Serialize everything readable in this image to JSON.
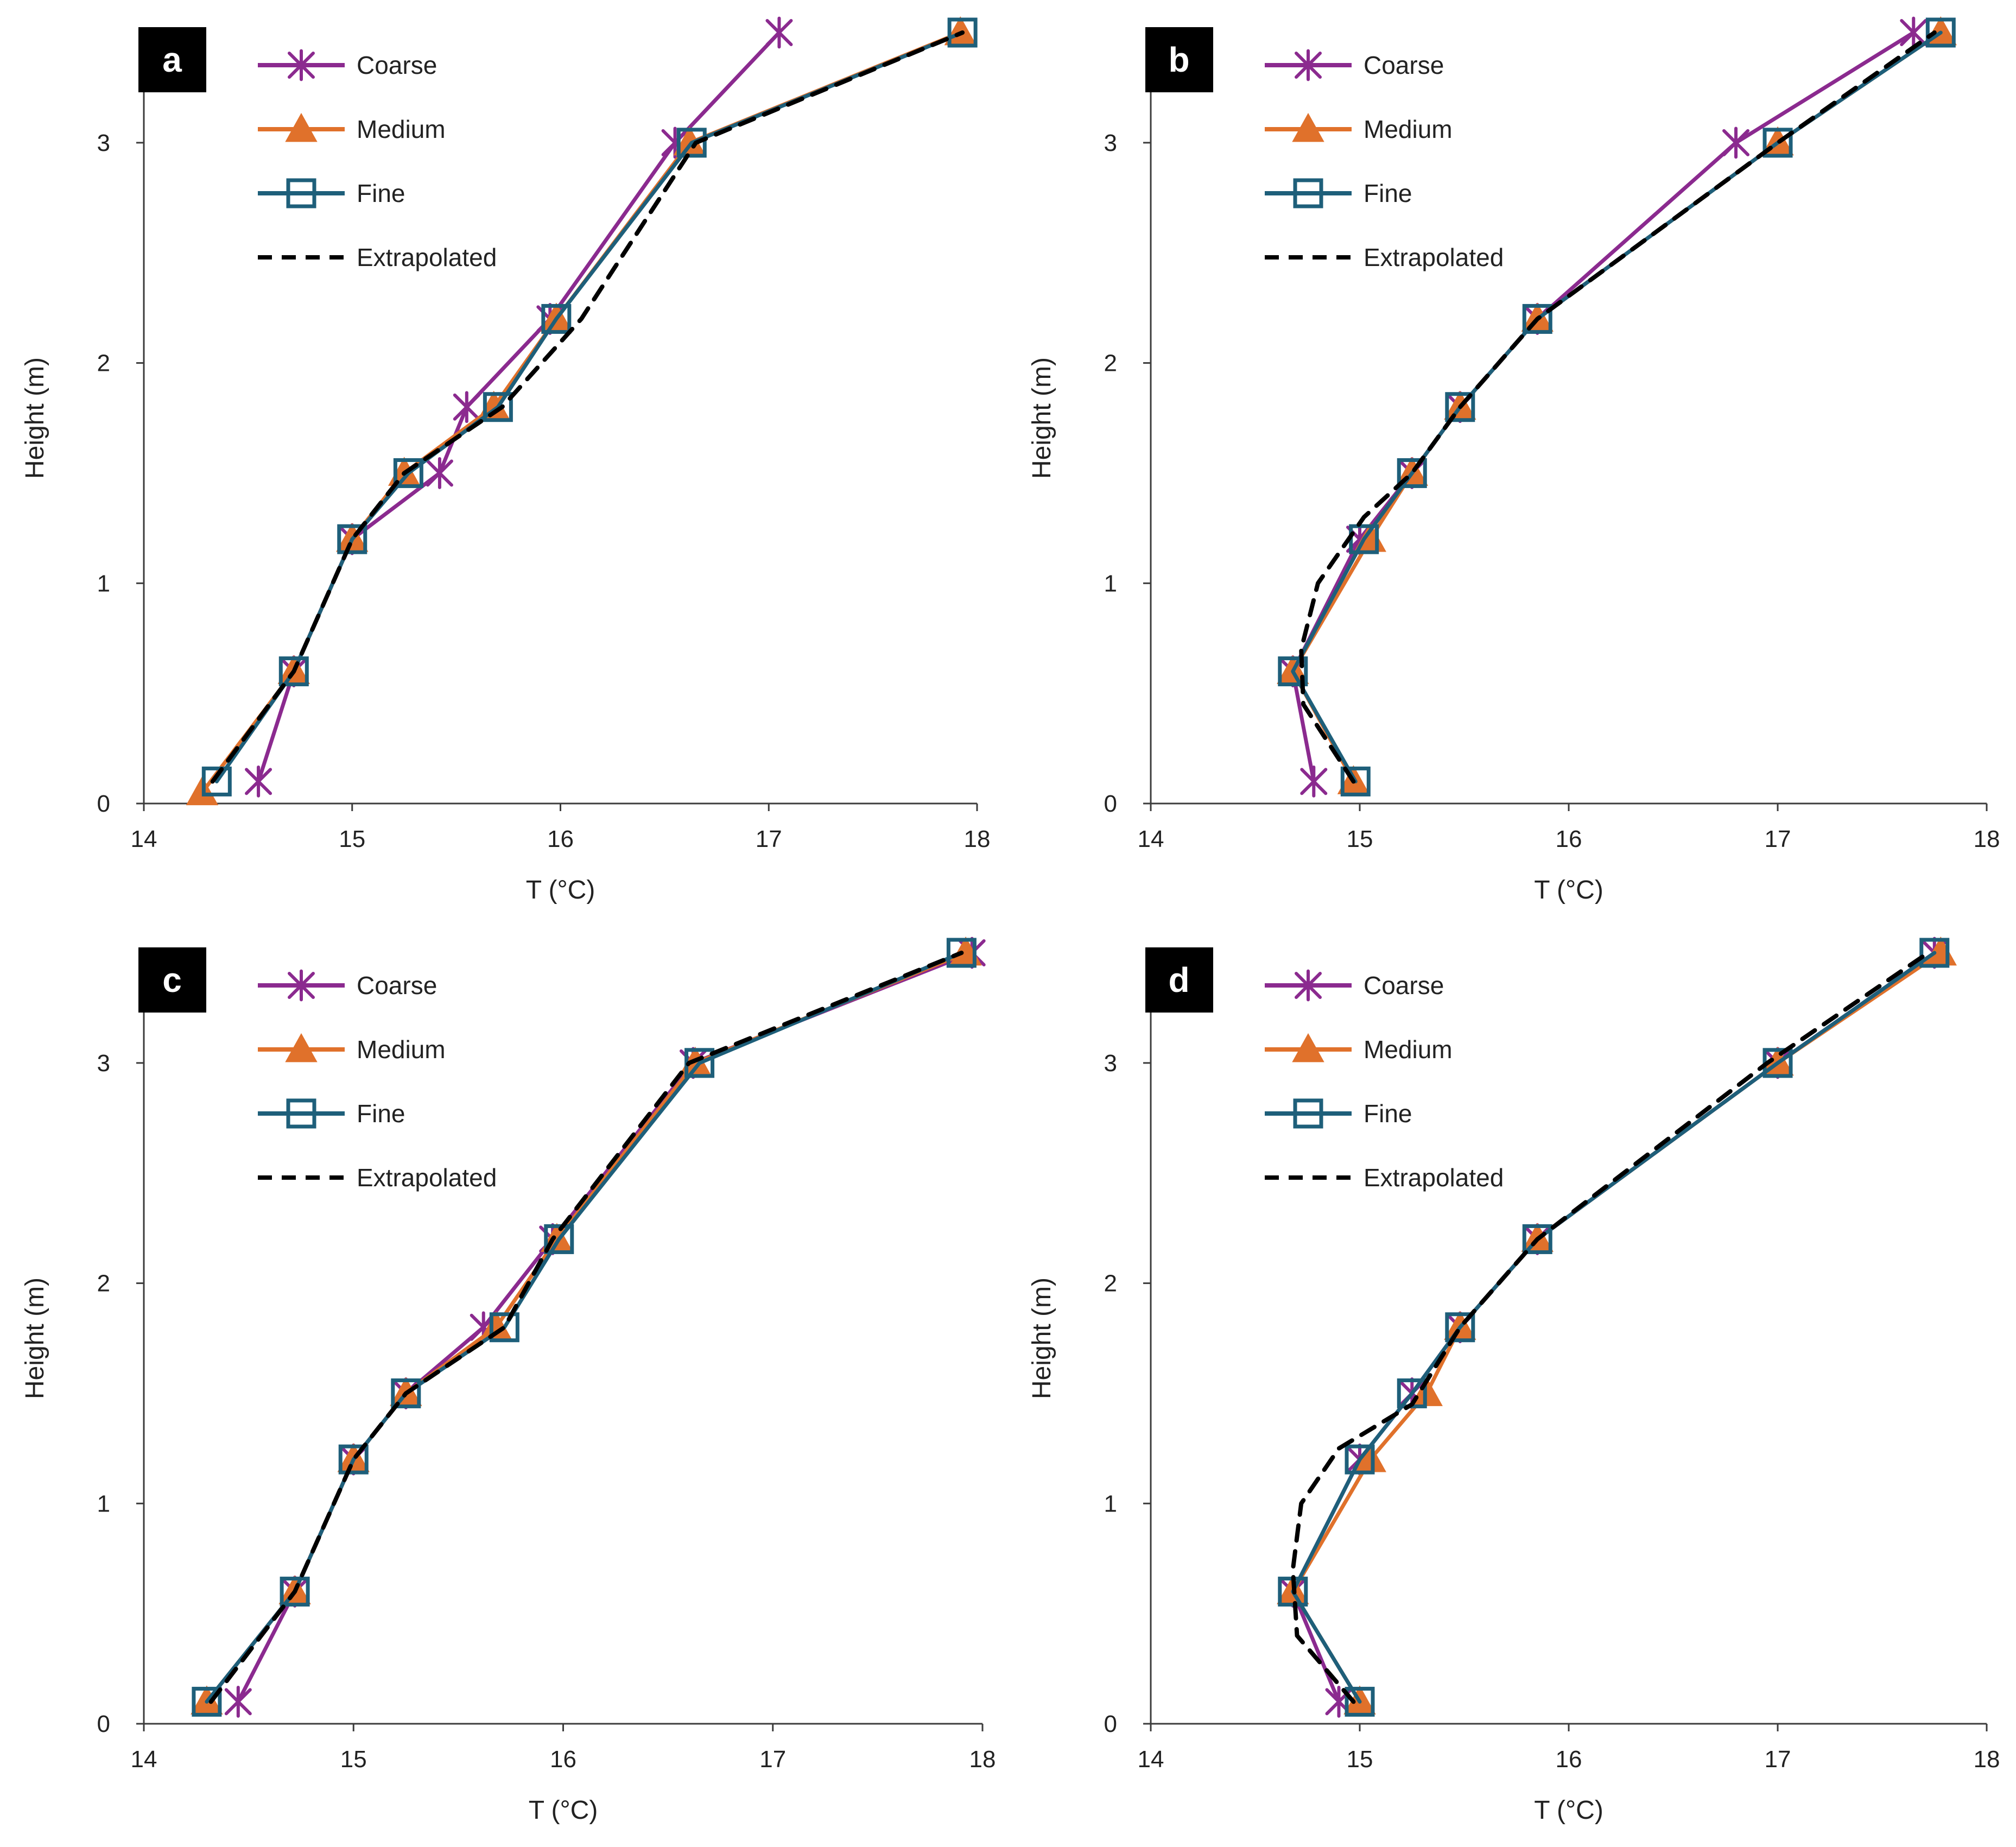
{
  "figure_title": "",
  "colors": {
    "Coarse": "#8B2A8F",
    "Medium": "#E0712B",
    "Fine": "#1E5F7A",
    "Extrapolated": "#000000",
    "axis": "#3c3c3c",
    "panel_label_bg": "#000000"
  },
  "legend": [
    "Coarse",
    "Medium",
    "Fine",
    "Extrapolated"
  ],
  "chart_data": [
    {
      "panel": "a",
      "type": "line",
      "xlabel": "T (°C)",
      "ylabel": "Height (m)",
      "xlim": [
        14,
        18
      ],
      "ylim": [
        0,
        3.5
      ],
      "xticks": [
        14,
        15,
        16,
        17,
        18
      ],
      "yticks": [
        0,
        1,
        2,
        3
      ],
      "grid": false,
      "legend_position": "top-left",
      "series": [
        {
          "name": "Coarse",
          "marker": "star",
          "points": [
            [
              14.55,
              0.1
            ],
            [
              14.72,
              0.6
            ],
            [
              15.0,
              1.2
            ],
            [
              15.42,
              1.5
            ],
            [
              15.55,
              1.8
            ],
            [
              15.95,
              2.2
            ],
            [
              16.55,
              3.0
            ],
            [
              17.05,
              3.5
            ]
          ]
        },
        {
          "name": "Medium",
          "marker": "triangle",
          "points": [
            [
              14.28,
              0.05
            ],
            [
              14.72,
              0.6
            ],
            [
              15.0,
              1.2
            ],
            [
              15.25,
              1.5
            ],
            [
              15.68,
              1.8
            ],
            [
              15.98,
              2.2
            ],
            [
              16.62,
              3.0
            ],
            [
              17.92,
              3.5
            ]
          ]
        },
        {
          "name": "Fine",
          "marker": "square",
          "points": [
            [
              14.35,
              0.1
            ],
            [
              14.72,
              0.6
            ],
            [
              15.0,
              1.2
            ],
            [
              15.27,
              1.5
            ],
            [
              15.7,
              1.8
            ],
            [
              15.98,
              2.2
            ],
            [
              16.63,
              3.0
            ],
            [
              17.93,
              3.5
            ]
          ]
        },
        {
          "name": "Extrapolated",
          "marker": "none",
          "dashed": true,
          "points": [
            [
              14.33,
              0.1
            ],
            [
              14.72,
              0.6
            ],
            [
              15.0,
              1.2
            ],
            [
              15.25,
              1.5
            ],
            [
              15.72,
              1.8
            ],
            [
              16.1,
              2.2
            ],
            [
              16.65,
              3.0
            ],
            [
              17.93,
              3.5
            ]
          ]
        }
      ]
    },
    {
      "panel": "b",
      "type": "line",
      "xlabel": "T (°C)",
      "ylabel": "Height (m)",
      "xlim": [
        14,
        18
      ],
      "ylim": [
        0,
        3.5
      ],
      "xticks": [
        14,
        15,
        16,
        17,
        18
      ],
      "yticks": [
        0,
        1,
        2,
        3
      ],
      "grid": false,
      "legend_position": "top-left",
      "series": [
        {
          "name": "Coarse",
          "marker": "star",
          "points": [
            [
              14.78,
              0.1
            ],
            [
              14.68,
              0.6
            ],
            [
              15.0,
              1.2
            ],
            [
              15.25,
              1.5
            ],
            [
              15.48,
              1.8
            ],
            [
              15.85,
              2.2
            ],
            [
              16.8,
              3.0
            ],
            [
              17.65,
              3.5
            ]
          ]
        },
        {
          "name": "Medium",
          "marker": "triangle",
          "points": [
            [
              14.97,
              0.1
            ],
            [
              14.68,
              0.6
            ],
            [
              15.05,
              1.2
            ],
            [
              15.25,
              1.5
            ],
            [
              15.48,
              1.8
            ],
            [
              15.85,
              2.2
            ],
            [
              17.0,
              3.0
            ],
            [
              17.78,
              3.5
            ]
          ]
        },
        {
          "name": "Fine",
          "marker": "square",
          "points": [
            [
              14.98,
              0.1
            ],
            [
              14.68,
              0.6
            ],
            [
              15.02,
              1.2
            ],
            [
              15.25,
              1.5
            ],
            [
              15.48,
              1.8
            ],
            [
              15.85,
              2.2
            ],
            [
              17.0,
              3.0
            ],
            [
              17.78,
              3.5
            ]
          ]
        },
        {
          "name": "Extrapolated",
          "marker": "none",
          "dashed": true,
          "points": [
            [
              14.97,
              0.1
            ],
            [
              14.73,
              0.45
            ],
            [
              14.72,
              0.7
            ],
            [
              14.8,
              1.0
            ],
            [
              15.02,
              1.3
            ],
            [
              15.25,
              1.5
            ],
            [
              15.48,
              1.8
            ],
            [
              15.85,
              2.2
            ],
            [
              17.0,
              3.0
            ],
            [
              17.75,
              3.5
            ]
          ]
        }
      ]
    },
    {
      "panel": "c",
      "type": "line",
      "xlabel": "T (°C)",
      "ylabel": "Height (m)",
      "xlim": [
        14,
        18
      ],
      "ylim": [
        0,
        3.5
      ],
      "xticks": [
        14,
        15,
        16,
        17,
        18
      ],
      "yticks": [
        0,
        1,
        2,
        3
      ],
      "grid": false,
      "legend_position": "top-left",
      "series": [
        {
          "name": "Coarse",
          "marker": "star",
          "points": [
            [
              14.45,
              0.1
            ],
            [
              14.72,
              0.6
            ],
            [
              15.0,
              1.2
            ],
            [
              15.25,
              1.5
            ],
            [
              15.62,
              1.8
            ],
            [
              15.95,
              2.2
            ],
            [
              16.62,
              3.0
            ],
            [
              17.95,
              3.5
            ]
          ]
        },
        {
          "name": "Medium",
          "marker": "triangle",
          "points": [
            [
              14.3,
              0.1
            ],
            [
              14.72,
              0.6
            ],
            [
              15.0,
              1.2
            ],
            [
              15.25,
              1.5
            ],
            [
              15.68,
              1.8
            ],
            [
              15.97,
              2.2
            ],
            [
              16.63,
              3.0
            ],
            [
              17.92,
              3.5
            ]
          ]
        },
        {
          "name": "Fine",
          "marker": "square",
          "points": [
            [
              14.3,
              0.1
            ],
            [
              14.72,
              0.6
            ],
            [
              15.0,
              1.2
            ],
            [
              15.25,
              1.5
            ],
            [
              15.72,
              1.8
            ],
            [
              15.98,
              2.2
            ],
            [
              16.65,
              3.0
            ],
            [
              17.9,
              3.5
            ]
          ]
        },
        {
          "name": "Extrapolated",
          "marker": "none",
          "dashed": true,
          "points": [
            [
              14.32,
              0.1
            ],
            [
              14.72,
              0.6
            ],
            [
              15.0,
              1.2
            ],
            [
              15.25,
              1.5
            ],
            [
              15.72,
              1.8
            ],
            [
              15.95,
              2.2
            ],
            [
              16.6,
              3.0
            ],
            [
              17.9,
              3.5
            ]
          ]
        }
      ]
    },
    {
      "panel": "d",
      "type": "line",
      "xlabel": "T (°C)",
      "ylabel": "Height (m)",
      "xlim": [
        14,
        18
      ],
      "ylim": [
        0,
        3.5
      ],
      "xticks": [
        14,
        15,
        16,
        17,
        18
      ],
      "yticks": [
        0,
        1,
        2,
        3
      ],
      "grid": false,
      "legend_position": "top-left",
      "series": [
        {
          "name": "Coarse",
          "marker": "star",
          "points": [
            [
              14.9,
              0.1
            ],
            [
              14.68,
              0.6
            ],
            [
              15.0,
              1.2
            ],
            [
              15.25,
              1.5
            ],
            [
              15.48,
              1.8
            ],
            [
              15.85,
              2.2
            ],
            [
              17.0,
              3.0
            ],
            [
              17.75,
              3.5
            ]
          ]
        },
        {
          "name": "Medium",
          "marker": "triangle",
          "points": [
            [
              15.0,
              0.1
            ],
            [
              14.68,
              0.6
            ],
            [
              15.05,
              1.2
            ],
            [
              15.32,
              1.5
            ],
            [
              15.48,
              1.8
            ],
            [
              15.85,
              2.2
            ],
            [
              17.0,
              3.0
            ],
            [
              17.78,
              3.5
            ]
          ]
        },
        {
          "name": "Fine",
          "marker": "square",
          "points": [
            [
              15.0,
              0.1
            ],
            [
              14.68,
              0.6
            ],
            [
              15.0,
              1.2
            ],
            [
              15.25,
              1.5
            ],
            [
              15.48,
              1.8
            ],
            [
              15.85,
              2.2
            ],
            [
              17.0,
              3.0
            ],
            [
              17.75,
              3.5
            ]
          ]
        },
        {
          "name": "Extrapolated",
          "marker": "none",
          "dashed": true,
          "points": [
            [
              14.97,
              0.1
            ],
            [
              14.7,
              0.4
            ],
            [
              14.68,
              0.7
            ],
            [
              14.72,
              1.0
            ],
            [
              14.9,
              1.25
            ],
            [
              15.25,
              1.45
            ],
            [
              15.48,
              1.8
            ],
            [
              15.85,
              2.2
            ],
            [
              16.95,
              3.0
            ],
            [
              17.72,
              3.5
            ]
          ]
        }
      ]
    }
  ]
}
